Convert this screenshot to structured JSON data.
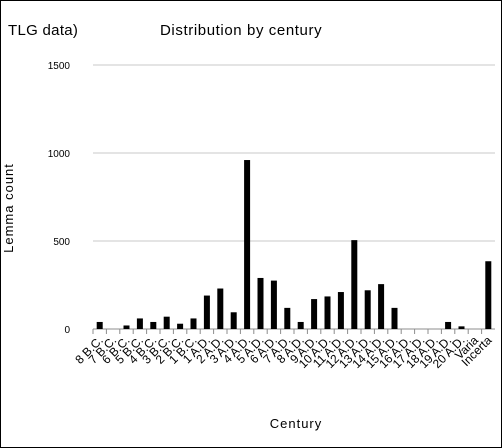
{
  "header": {
    "lead_text": "TLG data)",
    "title": "Distribution by century"
  },
  "colors": {
    "bar": "#000000",
    "grid": "#c8c8c8",
    "axis": "#8c8c8c"
  },
  "chart_data": {
    "type": "bar",
    "title": "Distribution by century",
    "xlabel": "Century",
    "ylabel": "Lemma count",
    "ylim": [
      0,
      1500
    ],
    "yticks": [
      0,
      500,
      1000,
      1500
    ],
    "grid": true,
    "categories": [
      "8 B.C.",
      "7 B.C.",
      "6 B.C.",
      "5 B.C.",
      "4 B.C.",
      "3 B.C.",
      "2 B.C.",
      "1 B.C.",
      "1 A.D.",
      "2 A.D.",
      "3 A.D.",
      "4 A.D.",
      "5 A.D.",
      "6 A.D.",
      "7 A.D.",
      "8 A.D.",
      "9 A.D.",
      "10 A.D.",
      "11 A.D.",
      "12 A.D.",
      "13 A.D.",
      "14 A.D.",
      "15 A.D.",
      "16 A.D.",
      "17 A.D.",
      "18 A.D.",
      "19 A.D.",
      "20 A.D.",
      "Varia",
      "Incerta"
    ],
    "values": [
      40,
      0,
      20,
      60,
      40,
      70,
      30,
      60,
      190,
      230,
      95,
      960,
      290,
      275,
      120,
      40,
      170,
      185,
      210,
      505,
      220,
      255,
      120,
      0,
      0,
      0,
      40,
      15,
      0,
      385
    ]
  }
}
